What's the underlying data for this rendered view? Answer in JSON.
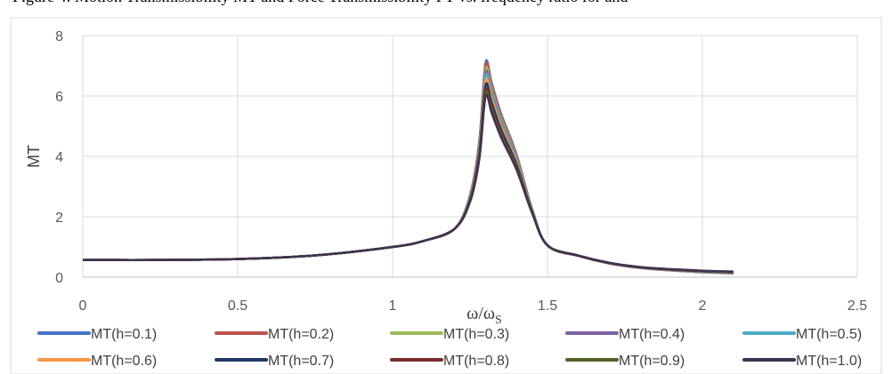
{
  "caption": "Figure 4: Motion Transmissibility MT and Force Transmissibility FT vs. frequency ratio for and",
  "chart_data": {
    "type": "line",
    "ylabel": "MT",
    "xlabel": "ω/ωS",
    "xlim": [
      0,
      2.5
    ],
    "ylim": [
      0,
      8
    ],
    "x_ticks": [
      "0",
      "0.5",
      "1",
      "1.5",
      "2",
      "2.5"
    ],
    "y_ticks": [
      "0",
      "2",
      "4",
      "6",
      "8"
    ],
    "grid": true,
    "legend_position": "bottom",
    "x": [
      0,
      0.25,
      0.5,
      0.75,
      1.0,
      1.1,
      1.2,
      1.25,
      1.28,
      1.3,
      1.32,
      1.35,
      1.4,
      1.45,
      1.5,
      1.6,
      1.7,
      1.8,
      1.9,
      2.0,
      2.1
    ],
    "series": [
      {
        "name": "MT(h=0.1)",
        "color": "#4472C4",
        "peak": 7.3
      },
      {
        "name": "MT(h=0.2)",
        "color": "#C0504D",
        "peak": 7.2
      },
      {
        "name": "MT(h=0.3)",
        "color": "#9BBB59",
        "peak": 7.0
      },
      {
        "name": "MT(h=0.4)",
        "color": "#8064A2",
        "peak": 6.85
      },
      {
        "name": "MT(h=0.5)",
        "color": "#4BACC6",
        "peak": 6.7
      },
      {
        "name": "MT(h=0.6)",
        "color": "#F79646",
        "peak": 6.5
      },
      {
        "name": "MT(h=0.7)",
        "color": "#1F3864",
        "peak": 6.3
      },
      {
        "name": "MT(h=0.8)",
        "color": "#7B2C2C",
        "peak": 6.1
      },
      {
        "name": "MT(h=0.9)",
        "color": "#4F6228",
        "peak": 5.95
      },
      {
        "name": "MT(h=1.0)",
        "color": "#403151",
        "peak": 5.8
      }
    ],
    "base_values": [
      0.57,
      0.57,
      0.6,
      0.72,
      1.0,
      1.2,
      1.6,
      2.6,
      4.2,
      6.5,
      5.9,
      5.0,
      3.8,
      2.2,
      1.05,
      0.7,
      0.45,
      0.3,
      0.22,
      0.16,
      0.12
    ]
  }
}
